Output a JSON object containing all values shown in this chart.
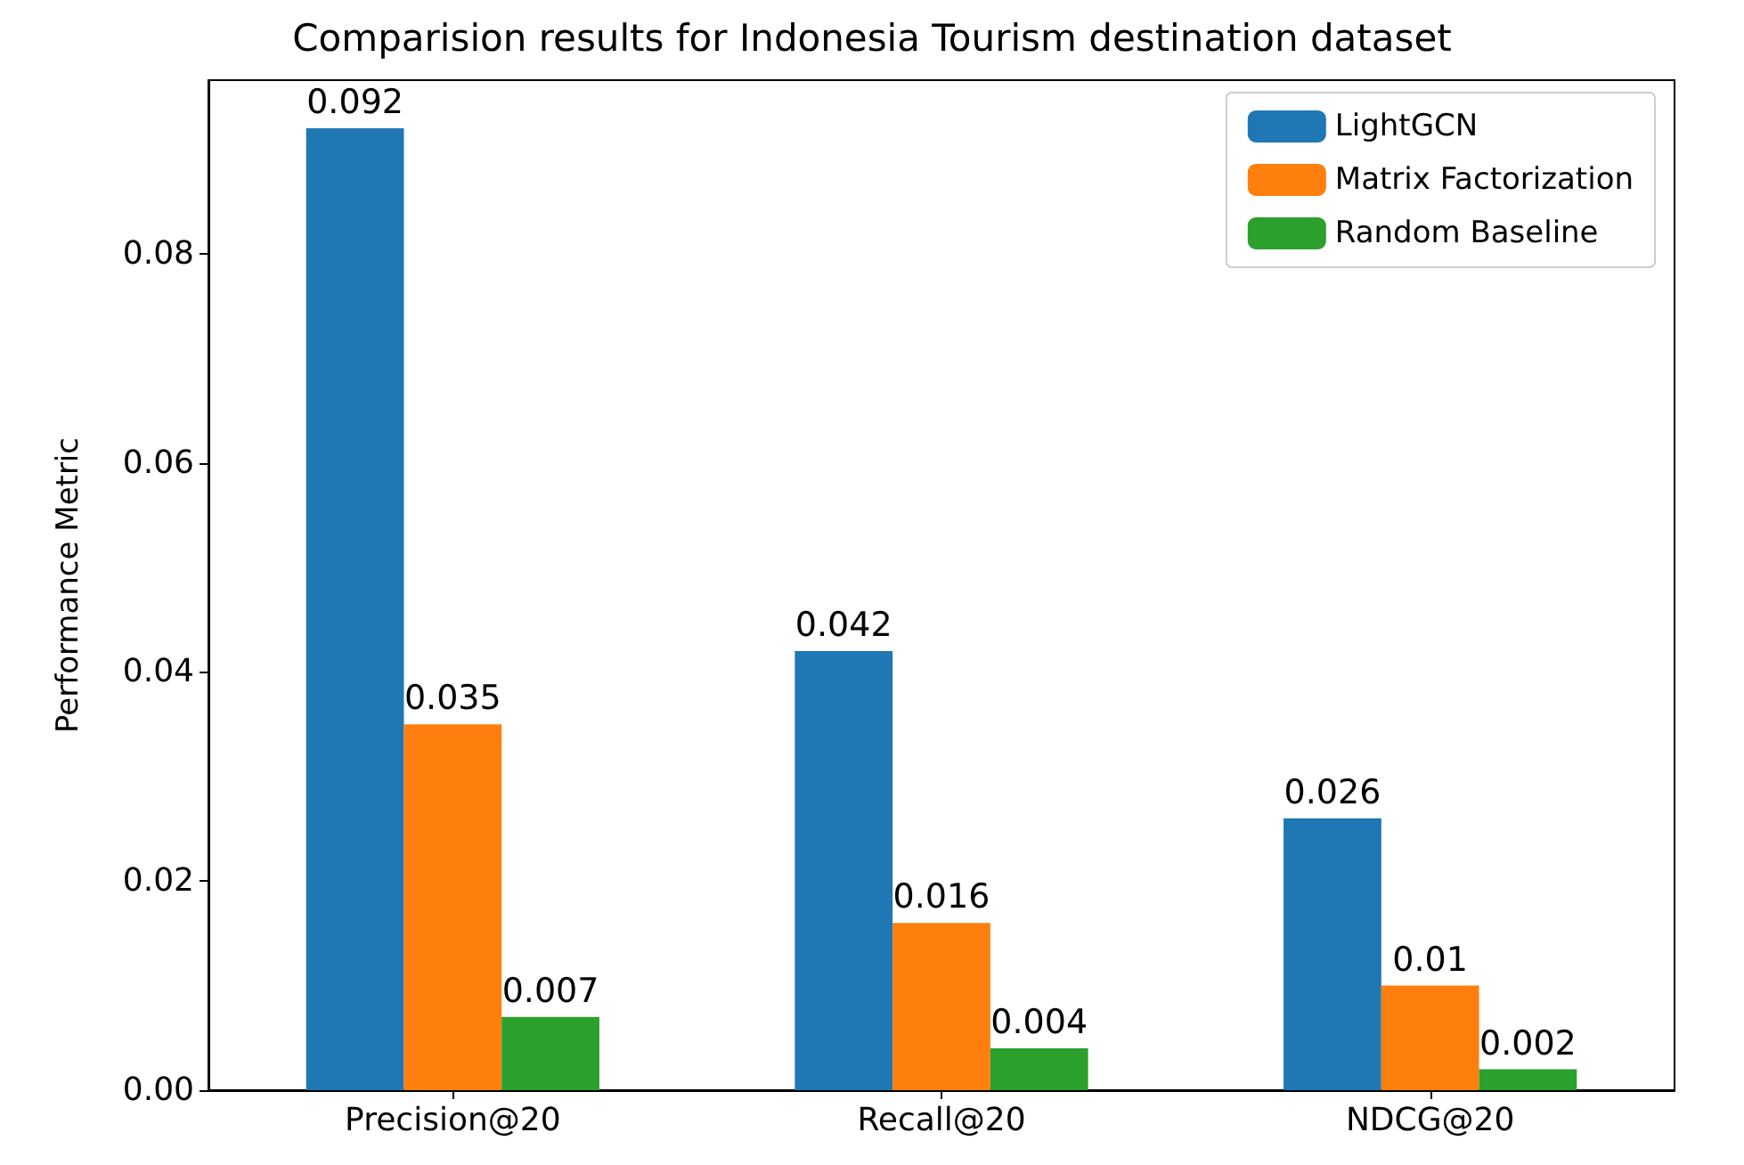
{
  "chart_data": {
    "type": "bar",
    "title": "Comparision results for Indonesia Tourism destination dataset",
    "ylabel": "Performance Metric",
    "categories": [
      "Precision@20",
      "Recall@20",
      "NDCG@20"
    ],
    "series": [
      {
        "name": "LightGCN",
        "color": "#1f77b4",
        "values": [
          0.092,
          0.042,
          0.026
        ]
      },
      {
        "name": "Matrix Factorization",
        "color": "#ff7f0e",
        "values": [
          0.035,
          0.016,
          0.01
        ]
      },
      {
        "name": "Random Baseline",
        "color": "#2ca02c",
        "values": [
          0.007,
          0.004,
          0.002
        ]
      }
    ],
    "ylim": [
      0,
      0.0966
    ],
    "yticks": [
      {
        "value": 0,
        "label": "0.00"
      },
      {
        "value": 0.02,
        "label": "0.02"
      },
      {
        "value": 0.04,
        "label": "0.04"
      },
      {
        "value": 0.06,
        "label": "0.06"
      },
      {
        "value": 0.08,
        "label": "0.08"
      }
    ],
    "data_labels": true,
    "grid": false,
    "legend": "top right"
  }
}
